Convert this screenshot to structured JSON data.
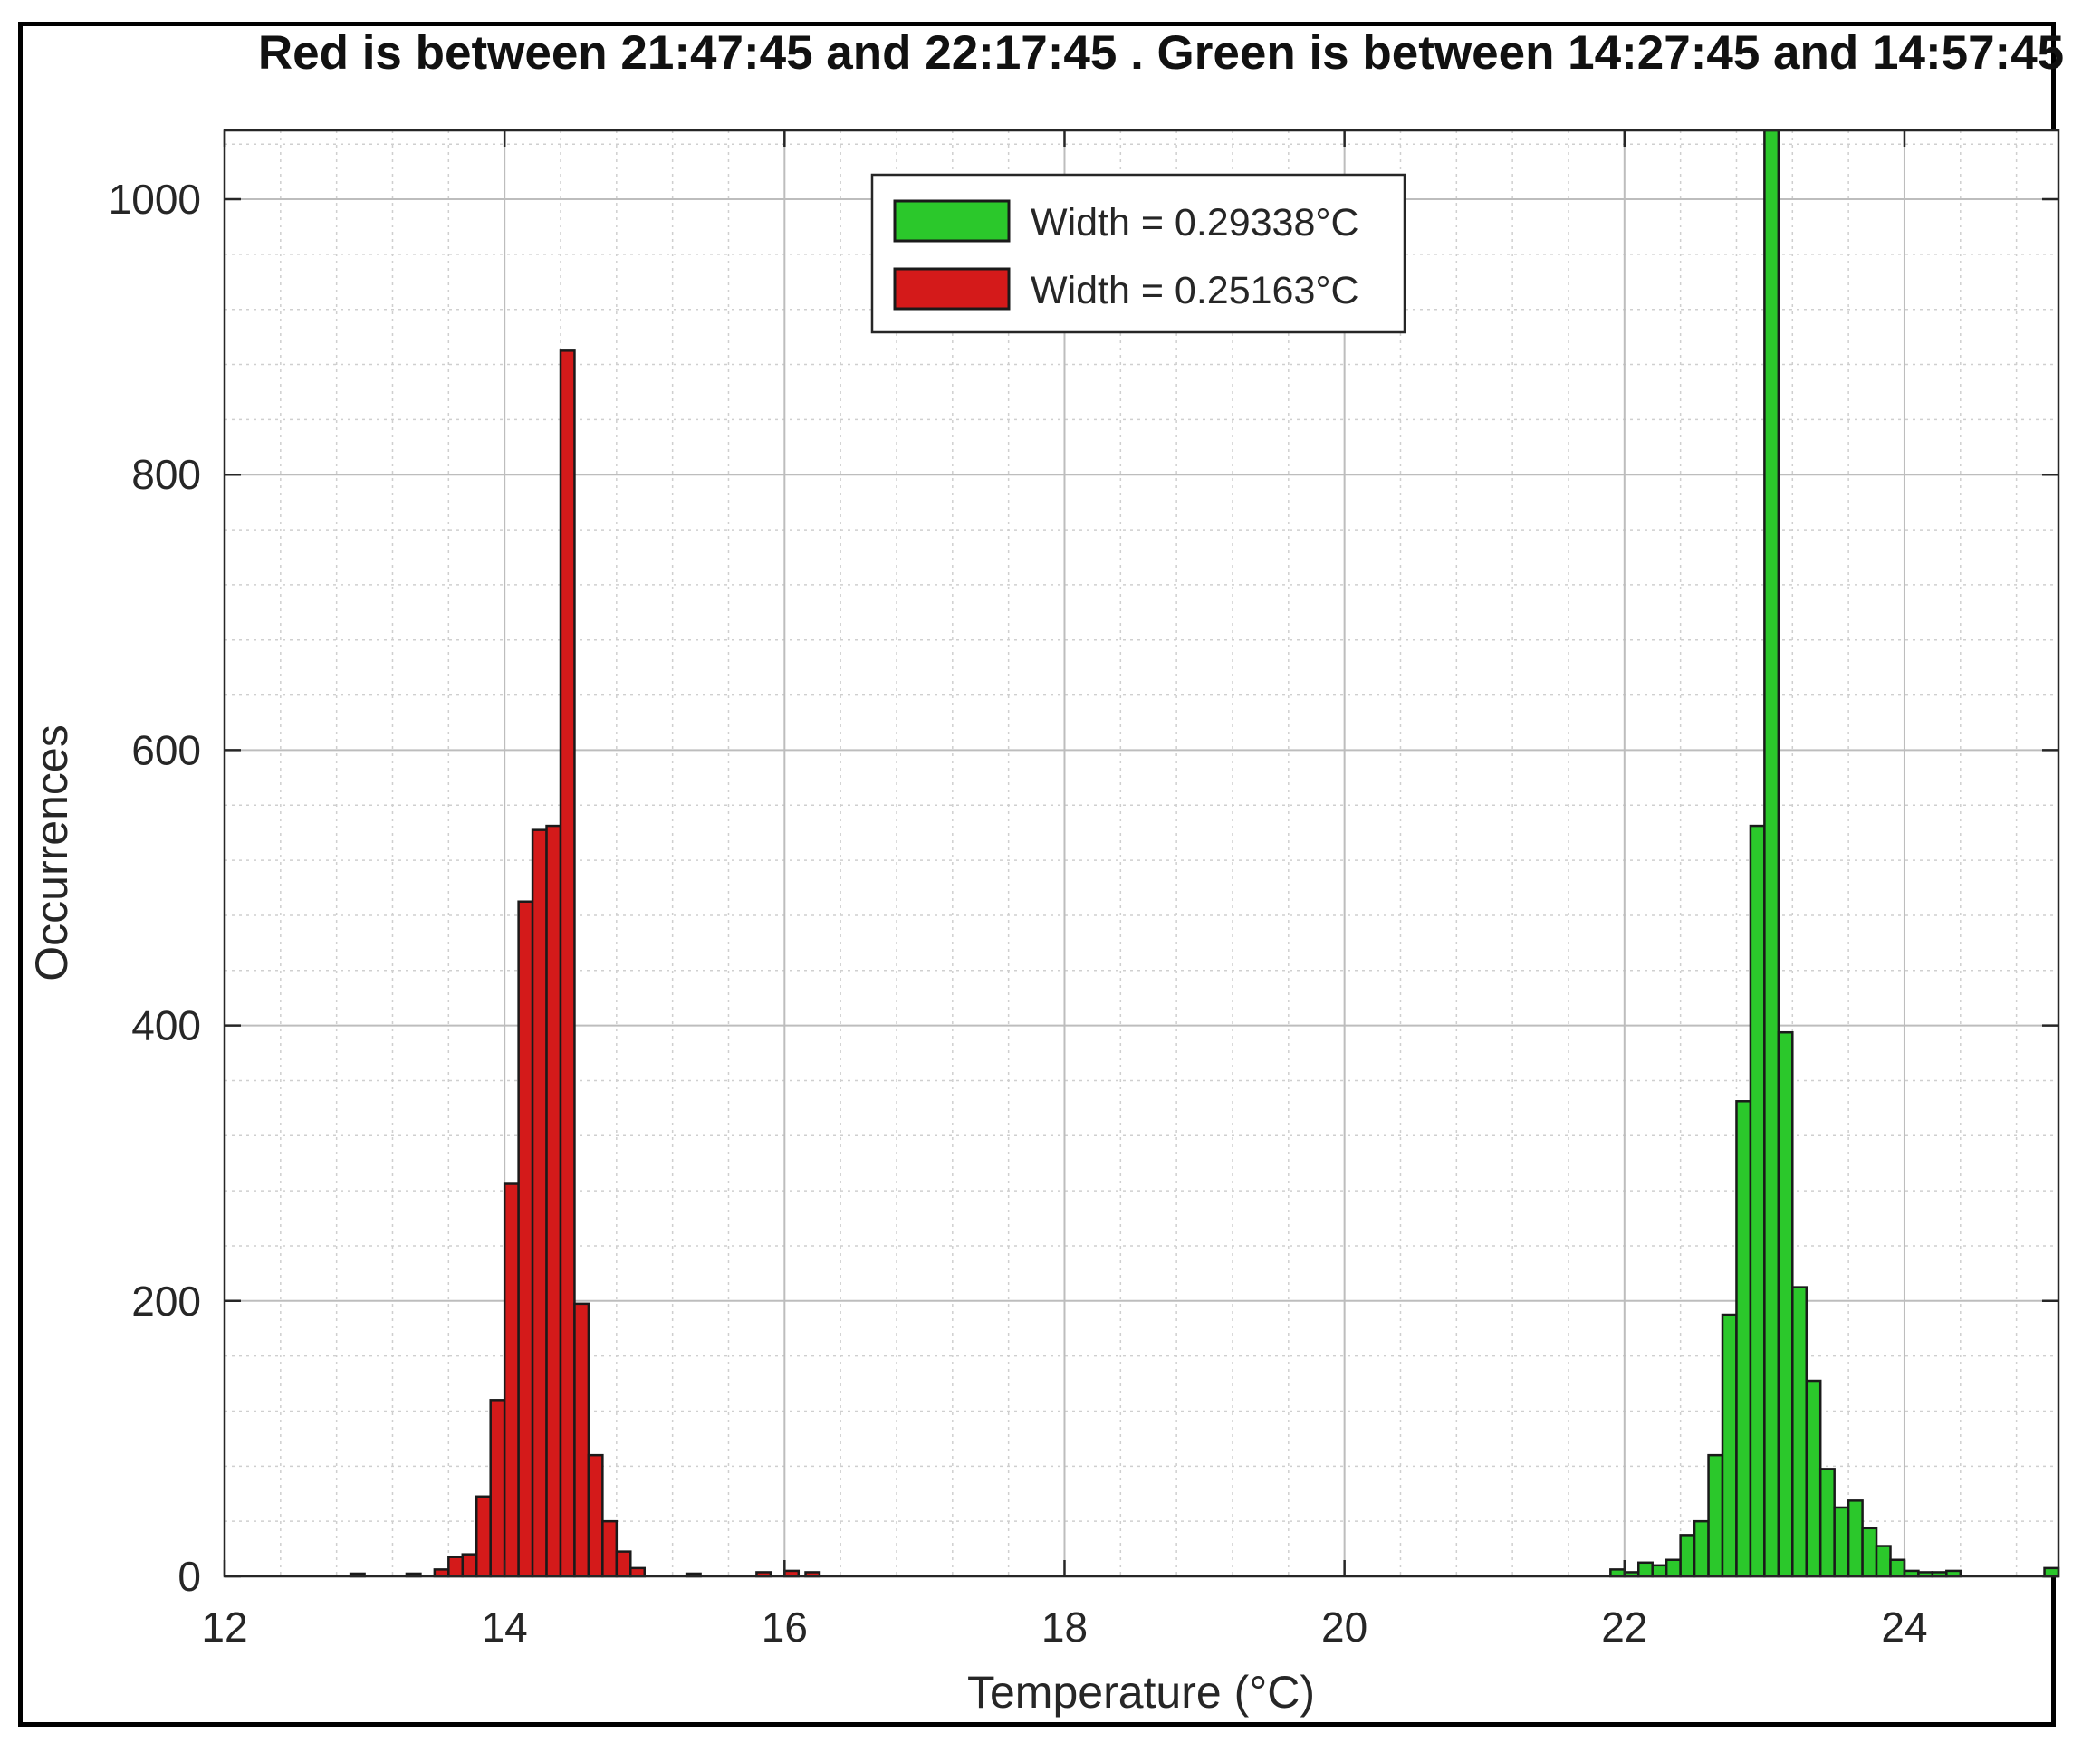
{
  "chart_data": {
    "type": "bar",
    "title": "Red is between 21:47:45 and 22:17:45 . Green is between 14:27:45 and 14:57:45",
    "xlabel": "Temperature (°C)",
    "ylabel": "Occurrences",
    "xlim": [
      12,
      25.1
    ],
    "ylim": [
      0,
      1050
    ],
    "xticks": [
      "12",
      "14",
      "16",
      "18",
      "20",
      "22",
      "24"
    ],
    "yticks": [
      "0",
      "200",
      "400",
      "600",
      "800",
      "1000"
    ],
    "grid": true,
    "minor_grid": true,
    "legend_position": "top-center",
    "bin_width": 0.1,
    "series": [
      {
        "name": "Width = 0.29338°C",
        "color": "#2bc82b",
        "x": [
          21.95,
          22.05,
          22.15,
          22.25,
          22.35,
          22.45,
          22.55,
          22.65,
          22.75,
          22.85,
          22.95,
          23.05,
          23.15,
          23.25,
          23.35,
          23.45,
          23.55,
          23.65,
          23.75,
          23.85,
          23.95,
          24.05,
          24.15,
          24.25,
          24.35,
          25.05
        ],
        "values": [
          5,
          3,
          10,
          8,
          12,
          30,
          40,
          88,
          190,
          345,
          545,
          1050,
          395,
          210,
          142,
          78,
          50,
          55,
          35,
          22,
          12,
          4,
          3,
          3,
          4,
          6
        ]
      },
      {
        "name": "Width = 0.25163°C",
        "color": "#d41a1a",
        "x": [
          12.95,
          13.35,
          13.55,
          13.65,
          13.75,
          13.85,
          13.95,
          14.05,
          14.15,
          14.25,
          14.35,
          14.45,
          14.55,
          14.65,
          14.75,
          14.85,
          14.95,
          15.35,
          15.85,
          16.05,
          16.2
        ],
        "values": [
          2,
          2,
          5,
          14,
          16,
          58,
          128,
          285,
          490,
          542,
          545,
          890,
          198,
          88,
          40,
          18,
          6,
          2,
          3,
          4,
          3
        ]
      }
    ]
  }
}
